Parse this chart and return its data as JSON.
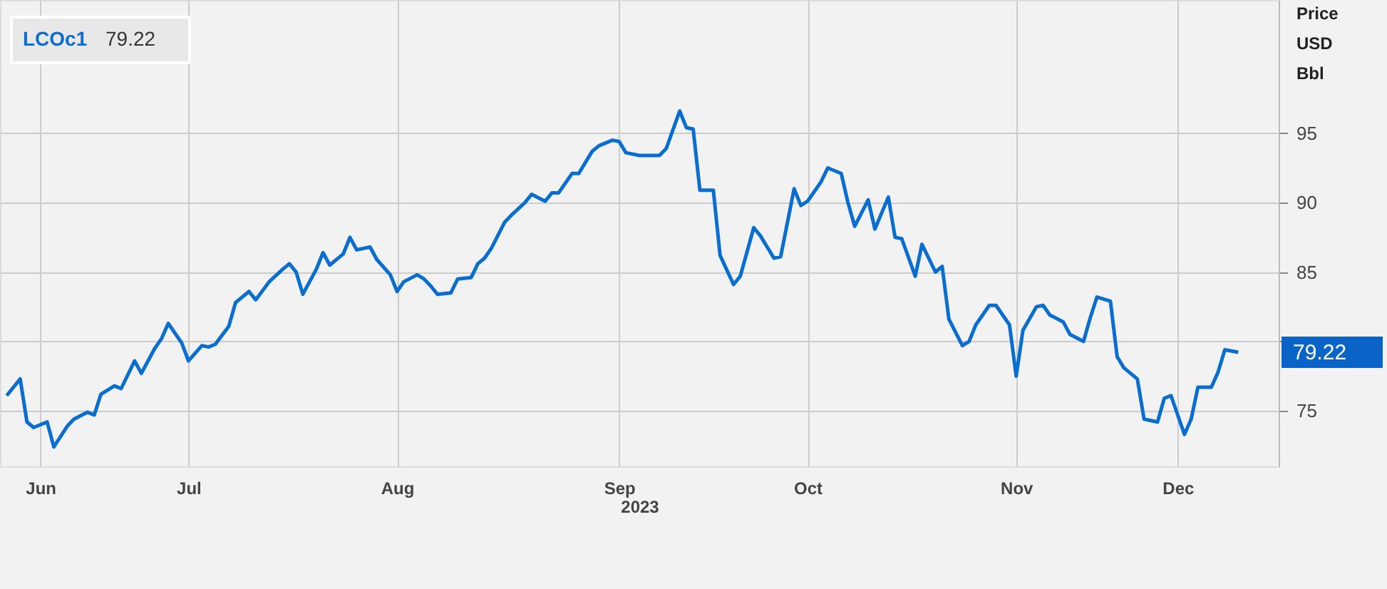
{
  "chart_data": {
    "type": "line",
    "ylabel": "Price USD Bbl",
    "xlabel": "2023",
    "x": [
      "2023-06-19",
      "2023-06-21",
      "2023-06-22",
      "2023-06-23",
      "2023-06-25",
      "2023-06-26",
      "2023-06-28",
      "2023-06-29",
      "2023-07-01",
      "2023-07-02",
      "2023-07-03",
      "2023-07-05",
      "2023-07-06",
      "2023-07-08",
      "2023-07-09",
      "2023-07-11",
      "2023-07-12",
      "2023-07-13",
      "2023-07-15",
      "2023-07-16",
      "2023-07-18",
      "2023-07-19",
      "2023-07-20",
      "2023-07-22",
      "2023-07-23",
      "2023-07-25",
      "2023-07-26",
      "2023-07-28",
      "2023-07-30",
      "2023-07-31",
      "2023-08-01",
      "2023-08-02",
      "2023-08-04",
      "2023-08-05",
      "2023-08-06",
      "2023-08-08",
      "2023-08-09",
      "2023-08-10",
      "2023-08-12",
      "2023-08-13",
      "2023-08-15",
      "2023-08-16",
      "2023-08-17",
      "2023-08-19",
      "2023-08-20",
      "2023-08-21",
      "2023-08-22",
      "2023-08-24",
      "2023-08-25",
      "2023-08-27",
      "2023-08-28",
      "2023-08-29",
      "2023-08-30",
      "2023-09-01",
      "2023-09-02",
      "2023-09-04",
      "2023-09-05",
      "2023-09-07",
      "2023-09-08",
      "2023-09-09",
      "2023-09-11",
      "2023-09-12",
      "2023-09-14",
      "2023-09-15",
      "2023-09-17",
      "2023-09-18",
      "2023-09-19",
      "2023-09-21",
      "2023-09-24",
      "2023-09-25",
      "2023-09-27",
      "2023-09-28",
      "2023-09-29",
      "2023-09-30",
      "2023-10-02",
      "2023-10-03",
      "2023-10-05",
      "2023-10-06",
      "2023-10-08",
      "2023-10-09",
      "2023-10-11",
      "2023-10-12",
      "2023-10-14",
      "2023-10-15",
      "2023-10-16",
      "2023-10-18",
      "2023-10-19",
      "2023-10-21",
      "2023-10-22",
      "2023-10-23",
      "2023-10-25",
      "2023-10-26",
      "2023-10-28",
      "2023-10-29",
      "2023-10-30",
      "2023-11-01",
      "2023-11-02",
      "2023-11-04",
      "2023-11-05",
      "2023-11-06",
      "2023-11-08",
      "2023-11-09",
      "2023-11-10",
      "2023-11-12",
      "2023-11-13",
      "2023-11-15",
      "2023-11-16",
      "2023-11-17",
      "2023-11-19",
      "2023-11-20",
      "2023-11-21",
      "2023-11-23",
      "2023-11-24",
      "2023-11-26",
      "2023-11-27",
      "2023-11-28",
      "2023-11-30",
      "2023-12-01",
      "2023-12-02",
      "2023-12-04",
      "2023-12-05",
      "2023-12-07",
      "2023-12-08",
      "2023-12-09",
      "2023-12-11",
      "2023-12-12",
      "2023-12-13",
      "2023-12-15",
      "2023-12-16",
      "2023-12-17",
      "2023-12-19"
    ],
    "series": [
      {
        "name": "LCOc1",
        "color": "#0a6ed1",
        "values": [
          76.1,
          77.3,
          74.2,
          73.8,
          74.2,
          72.4,
          73.9,
          74.4,
          74.9,
          74.7,
          76.2,
          76.8,
          76.6,
          78.6,
          77.7,
          79.5,
          80.2,
          81.3,
          79.9,
          78.6,
          79.7,
          79.6,
          79.8,
          81.1,
          82.8,
          83.6,
          83.0,
          84.3,
          85.2,
          85.6,
          85.0,
          83.4,
          85.2,
          86.4,
          85.5,
          86.3,
          87.5,
          86.6,
          86.8,
          85.9,
          84.8,
          83.6,
          84.3,
          84.8,
          84.5,
          84.0,
          83.4,
          83.5,
          84.5,
          84.6,
          85.6,
          86.0,
          86.7,
          88.6,
          89.1,
          90.0,
          90.6,
          90.1,
          90.7,
          90.7,
          92.1,
          92.1,
          93.7,
          94.1,
          94.5,
          94.4,
          93.6,
          93.4,
          93.4,
          93.9,
          96.6,
          95.4,
          95.3,
          90.9,
          90.9,
          86.2,
          84.1,
          84.7,
          88.2,
          87.6,
          86.0,
          86.1,
          91.0,
          89.8,
          90.1,
          91.5,
          92.5,
          92.1,
          90.0,
          88.3,
          90.2,
          88.1,
          90.4,
          87.5,
          87.4,
          84.7,
          87.0,
          85.0,
          85.4,
          81.6,
          79.7,
          80.0,
          81.2,
          82.6,
          82.6,
          81.2,
          77.5,
          80.8,
          82.5,
          82.6,
          81.9,
          81.4,
          80.5,
          80.0,
          81.7,
          83.2,
          82.9,
          78.9,
          78.1,
          77.3,
          74.4,
          74.2,
          75.9,
          76.1,
          73.3,
          74.4,
          76.7,
          76.7,
          77.8,
          79.4,
          79.22
        ]
      }
    ],
    "xlim": [
      "2023-06-18",
      "2023-12-25"
    ],
    "xticks": [
      {
        "value": "2023-06-24",
        "label": "Jun"
      },
      {
        "value": "2023-07-16",
        "label": "Jul"
      },
      {
        "value": "2023-08-16",
        "label": "Aug"
      },
      {
        "value": "2023-09-18",
        "label": "Sep"
      },
      {
        "value": "2023-10-16",
        "label": "Oct"
      },
      {
        "value": "2023-11-16",
        "label": "Nov"
      },
      {
        "value": "2023-12-10",
        "label": "Dec"
      }
    ],
    "ylim": [
      71,
      104.6
    ],
    "yticks": [
      75,
      {
        "value": 80,
        "label": null
      },
      85,
      90,
      95
    ],
    "annotations": [
      "79.22",
      "79.22"
    ],
    "grid": true,
    "legend": "top left",
    "marker": "none",
    "line_style": "solid"
  }
}
